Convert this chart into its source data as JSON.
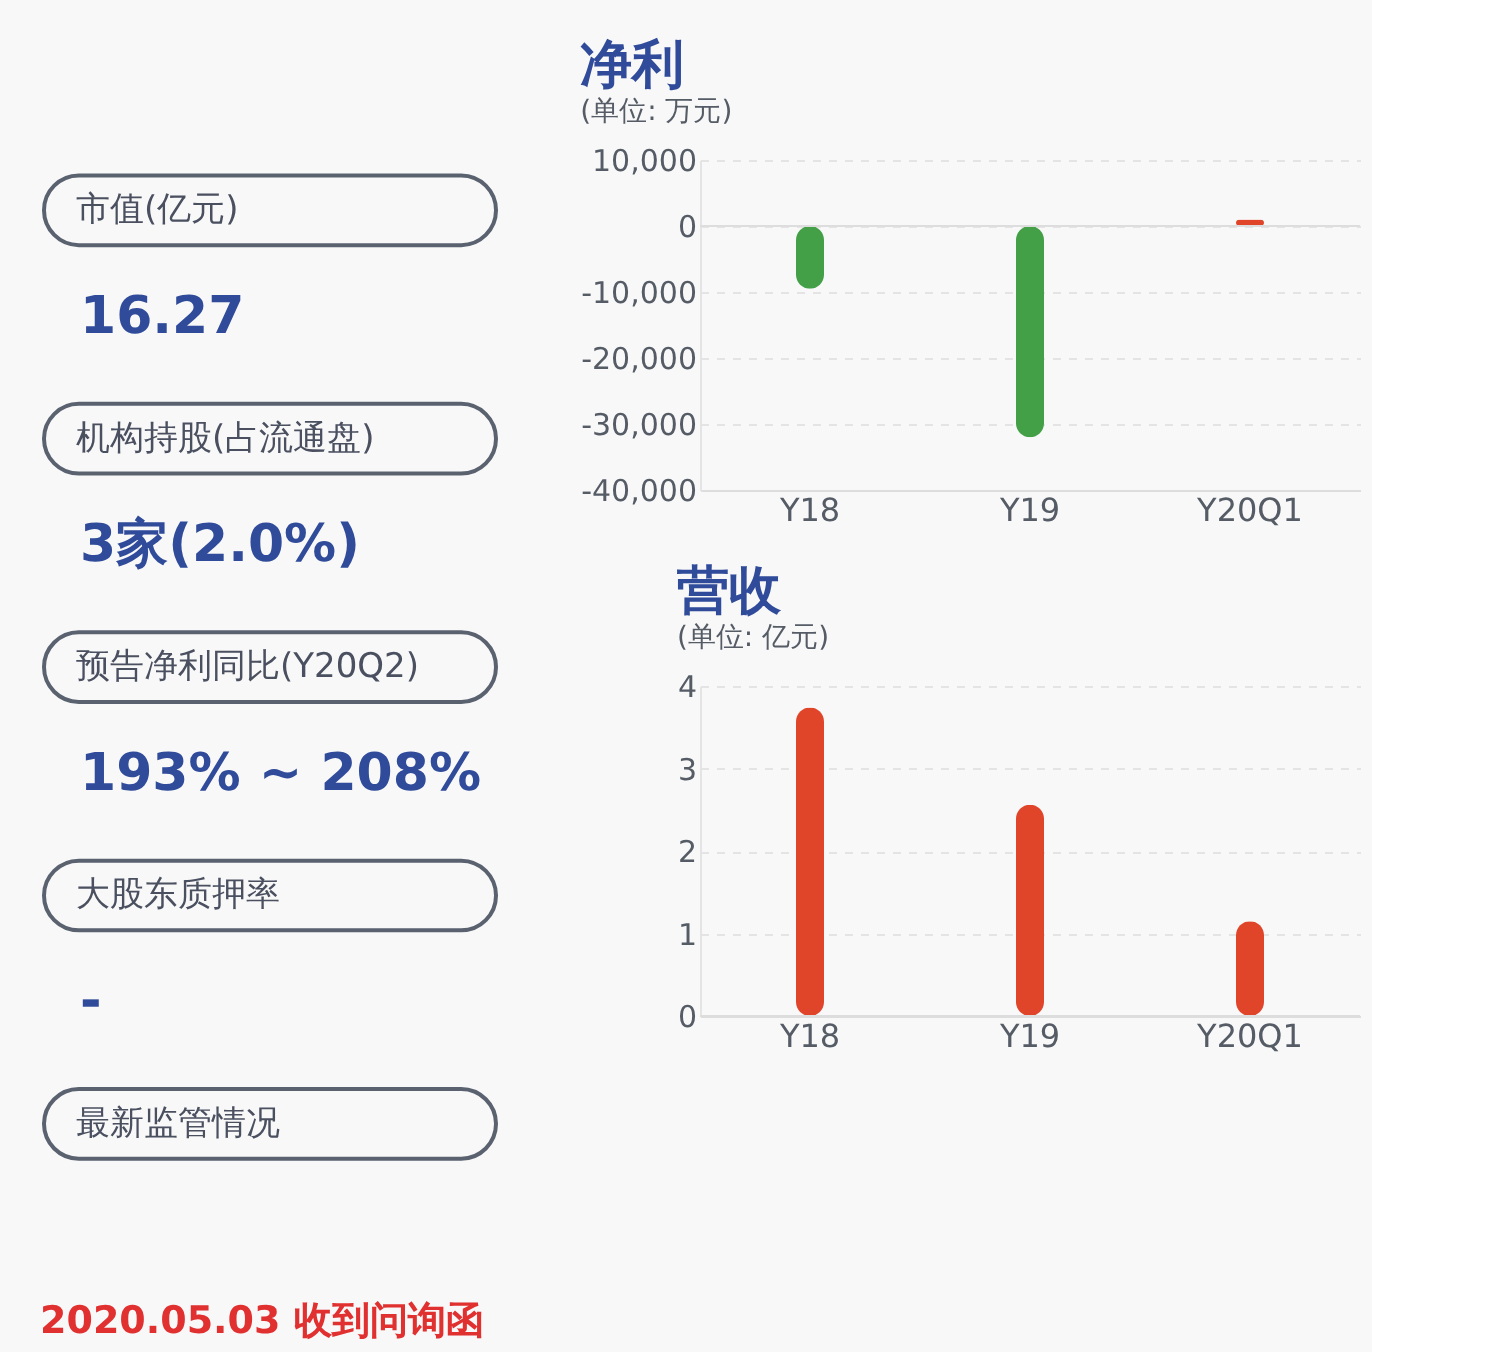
{
  "chart_data": [
    {
      "type": "other",
      "annotations": [
        "市值(亿元)",
        "16.27",
        "机构持股(占流通盘)",
        "3家(2.0%)",
        "预告净利同比(Y20Q2)",
        "193% ~ 208%",
        "大股东质押率",
        "-",
        "最新监管情况",
        "2020.05.03 收到问询函"
      ]
    },
    {
      "type": "bar",
      "title": "净利",
      "subtitle": "(单位: 万元)",
      "categories": [
        "Y18",
        "Y19",
        "Y20Q1"
      ],
      "values": [
        -9500,
        -32000,
        1000
      ],
      "colors": [
        "#43a047",
        "#43a047",
        "#e0452a"
      ],
      "ylim": [
        -40000,
        10000
      ],
      "yticks": [
        {
          "value": -40000,
          "label": "-40,000"
        },
        {
          "value": -30000,
          "label": "-30,000"
        },
        {
          "value": -20000,
          "label": "-20,000"
        },
        {
          "value": -10000,
          "label": "-10,000"
        },
        0,
        {
          "value": 10000,
          "label": "10,000"
        }
      ],
      "grid": "y"
    },
    {
      "type": "bar",
      "title": "营收",
      "subtitle": "(单位: 亿元)",
      "categories": [
        "Y18",
        "Y19",
        "Y20Q1"
      ],
      "values": [
        3.74,
        2.56,
        1.15
      ],
      "colors": [
        "#e0452a",
        "#e0452a",
        "#e0452a"
      ],
      "ylim": [
        0,
        4
      ],
      "yticks": [
        0,
        1,
        2,
        3,
        4
      ],
      "grid": "y"
    }
  ]
}
